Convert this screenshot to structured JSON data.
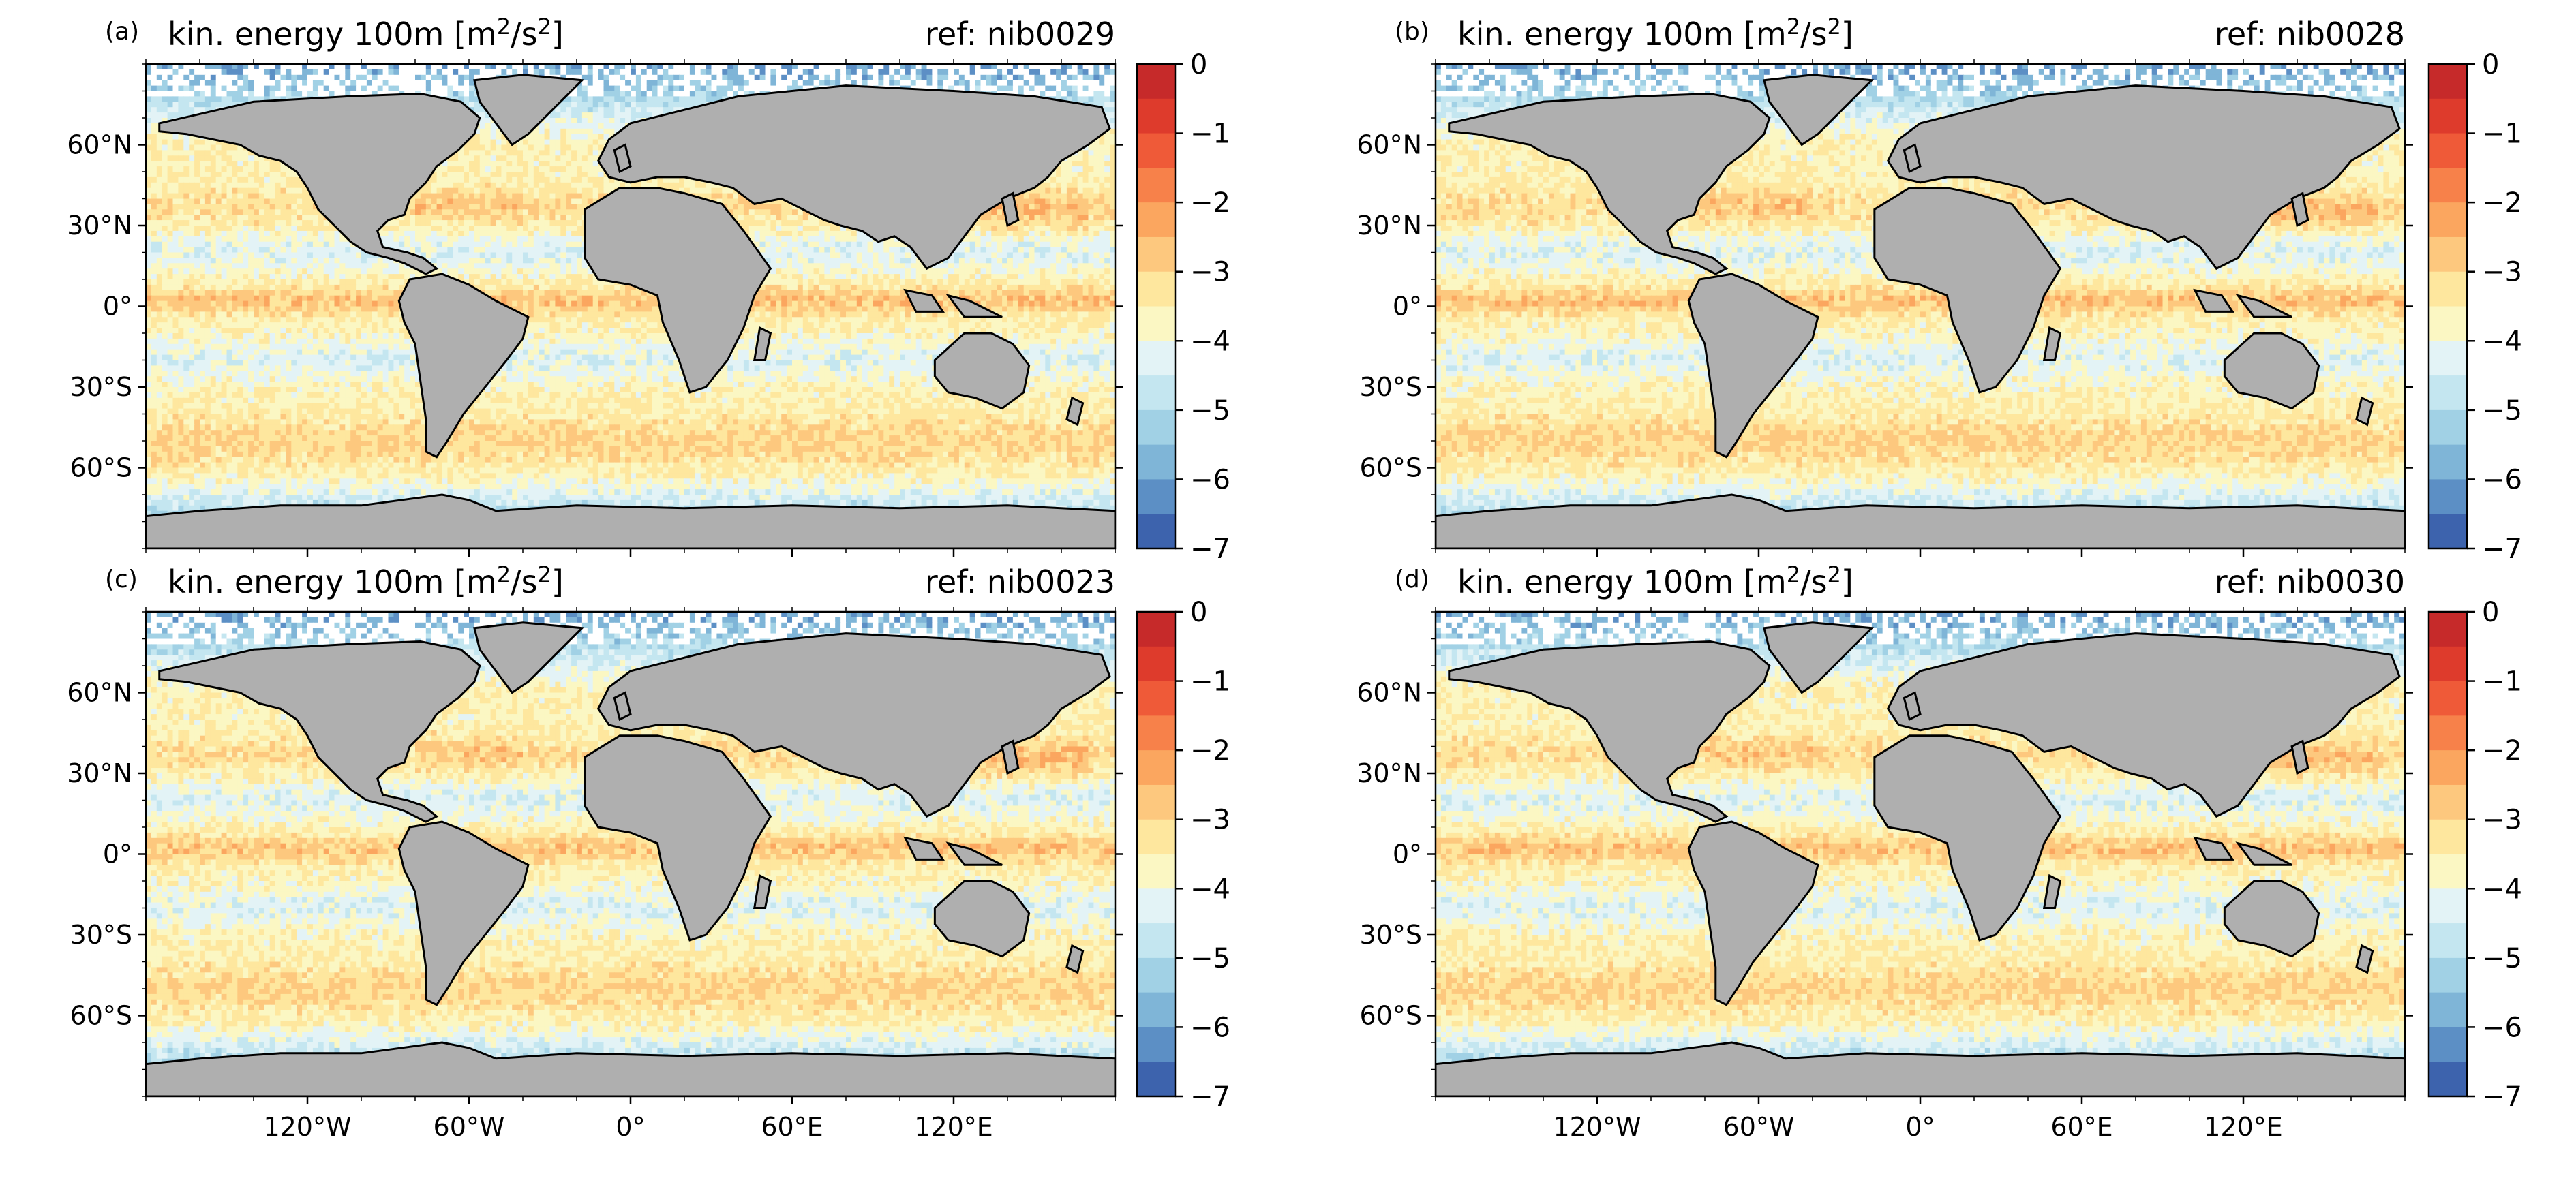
{
  "panels": [
    {
      "letter": "(a)",
      "title": "kin. energy 100m [m",
      "title_sup": "2",
      "title_mid": "/s",
      "title_sup2": "2",
      "title_end": "]",
      "ref": "ref: nib0029"
    },
    {
      "letter": "(b)",
      "title": "kin. energy 100m [m",
      "title_sup": "2",
      "title_mid": "/s",
      "title_sup2": "2",
      "title_end": "]",
      "ref": "ref: nib0028"
    },
    {
      "letter": "(c)",
      "title": "kin. energy 100m [m",
      "title_sup": "2",
      "title_mid": "/s",
      "title_sup2": "2",
      "title_end": "]",
      "ref": "ref: nib0023"
    },
    {
      "letter": "(d)",
      "title": "kin. energy 100m [m",
      "title_sup": "2",
      "title_mid": "/s",
      "title_sup2": "2",
      "title_end": "]",
      "ref": "ref: nib0030"
    }
  ],
  "lat_labels": [
    "60°N",
    "30°N",
    "0°",
    "30°S",
    "60°S"
  ],
  "lon_labels": [
    "120°W",
    "60°W",
    "0°",
    "60°E",
    "120°E"
  ],
  "colorbar": {
    "tick_labels": [
      "0",
      "−1",
      "−2",
      "−3",
      "−4",
      "−5",
      "−6",
      "−7"
    ],
    "levels": [
      0,
      -0.5,
      -1,
      -1.5,
      -2,
      -2.5,
      -3,
      -3.5,
      -4,
      -4.5,
      -5,
      -5.5,
      -6,
      -6.5,
      -7
    ],
    "colors": [
      "#c62a2a",
      "#de3b2c",
      "#ef5a38",
      "#f7814a",
      "#fba65f",
      "#fdc87e",
      "#fee79e",
      "#fbf7c3",
      "#e3f3f6",
      "#c4e6f0",
      "#a1d1e5",
      "#7fb5d7",
      "#5c8fc5",
      "#3d63ad"
    ]
  },
  "map_colors": {
    "land": "#afafaf",
    "ice": "#ffffff",
    "coast": "#000000"
  }
}
